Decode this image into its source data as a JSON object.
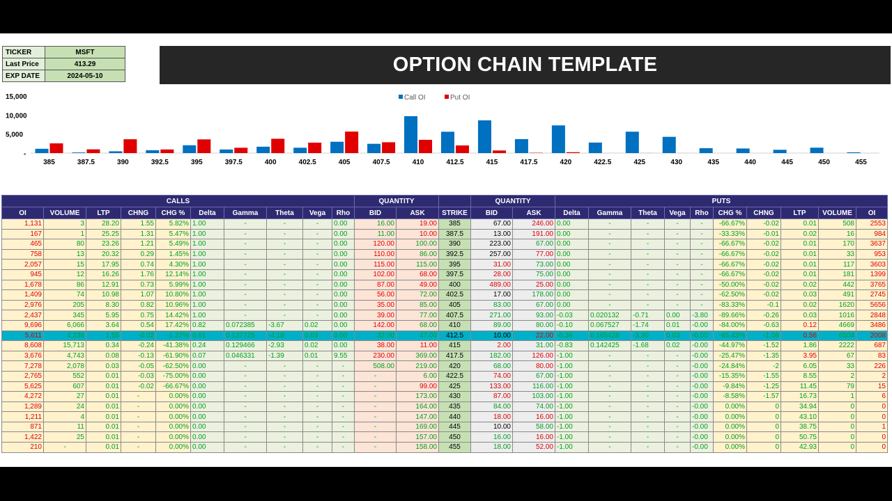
{
  "info": {
    "ticker_label": "TICKER",
    "ticker": "MSFT",
    "price_label": "Last Price",
    "price": "413.29",
    "exp_label": "EXP DATE",
    "exp": "2024-05-10"
  },
  "title": "OPTION CHAIN TEMPLATE",
  "chart_data": {
    "type": "bar",
    "title": "",
    "xlabel": "",
    "ylabel": "",
    "legend_position": "top-center",
    "ylim": [
      0,
      15000
    ],
    "y_ticks": [
      "15,000",
      "10,000",
      "5,000",
      "-"
    ],
    "y_tick_values": [
      15000,
      10000,
      5000,
      0
    ],
    "categories": [
      "385",
      "387.5",
      "390",
      "392.5",
      "395",
      "397.5",
      "400",
      "402.5",
      "405",
      "407.5",
      "410",
      "412.5",
      "415",
      "417.5",
      "420",
      "422.5",
      "425",
      "430",
      "435",
      "440",
      "445",
      "450",
      "455"
    ],
    "series": [
      {
        "name": "Call OI",
        "color": "#0070c0",
        "values": [
          1131,
          167,
          465,
          758,
          2057,
          945,
          1678,
          1409,
          2976,
          2437,
          9696,
          5611,
          8608,
          3676,
          7278,
          2765,
          5625,
          4272,
          1289,
          1211,
          871,
          1422,
          210
        ]
      },
      {
        "name": "Put OI",
        "color": "#e00000",
        "values": [
          2553,
          984,
          3637,
          953,
          3603,
          1399,
          3765,
          2745,
          5656,
          2848,
          3486,
          2008,
          687,
          83,
          226,
          2,
          15,
          6,
          0,
          0,
          1,
          0,
          0
        ]
      }
    ]
  },
  "groups": {
    "calls": "CALLS",
    "quantity_left": "QUANTITY",
    "quantity_right": "QUANTITY",
    "puts": "PUTS"
  },
  "headers": [
    "OI",
    "VOLUME",
    "LTP",
    "CHNG",
    "CHG %",
    "Delta",
    "Gamma",
    "Theta",
    "Vega",
    "Rho",
    "BID",
    "ASK",
    "STRIKE",
    "BID",
    "ASK",
    "Delta",
    "Gamma",
    "Theta",
    "Vega",
    "Rho",
    "CHG %",
    "CHNG",
    "LTP",
    "VOLUME",
    "OI"
  ],
  "rows": [
    [
      "1,131",
      "3",
      "28.20",
      "1.55",
      "5.82%",
      "1.00",
      "-",
      "-",
      "-",
      "0.00",
      "16.00",
      "19.00",
      "385",
      "67.00",
      "246.00",
      "0.00",
      "-",
      "-",
      "-",
      "-",
      "-66.67%",
      "-0.02",
      "0.01",
      "508",
      "2553"
    ],
    [
      "167",
      "1",
      "25.25",
      "1.31",
      "5.47%",
      "1.00",
      "-",
      "-",
      "-",
      "0.00",
      "11.00",
      "10.00",
      "387.5",
      "13.00",
      "191.00",
      "0.00",
      "-",
      "-",
      "-",
      "-",
      "-33.33%",
      "-0.01",
      "0.02",
      "16",
      "984"
    ],
    [
      "465",
      "80",
      "23.26",
      "1.21",
      "5.49%",
      "1.00",
      "-",
      "-",
      "-",
      "0.00",
      "120.00",
      "100.00",
      "390",
      "223.00",
      "67.00",
      "0.00",
      "-",
      "-",
      "-",
      "-",
      "-66.67%",
      "-0.02",
      "0.01",
      "170",
      "3637"
    ],
    [
      "758",
      "13",
      "20.32",
      "0.29",
      "1.45%",
      "1.00",
      "-",
      "-",
      "-",
      "0.00",
      "110.00",
      "86.00",
      "392.5",
      "257.00",
      "77.00",
      "0.00",
      "-",
      "-",
      "-",
      "-",
      "-66.67%",
      "-0.02",
      "0.01",
      "33",
      "953"
    ],
    [
      "2,057",
      "15",
      "17.95",
      "0.74",
      "4.30%",
      "1.00",
      "-",
      "-",
      "-",
      "0.00",
      "115.00",
      "115.00",
      "395",
      "31.00",
      "73.00",
      "0.00",
      "-",
      "-",
      "-",
      "-",
      "-66.67%",
      "-0.02",
      "0.01",
      "117",
      "3603"
    ],
    [
      "945",
      "12",
      "16.26",
      "1.76",
      "12.14%",
      "1.00",
      "-",
      "-",
      "-",
      "0.00",
      "102.00",
      "68.00",
      "397.5",
      "28.00",
      "75.00",
      "0.00",
      "-",
      "-",
      "-",
      "-",
      "-66.67%",
      "-0.02",
      "0.01",
      "181",
      "1399"
    ],
    [
      "1,678",
      "86",
      "12.91",
      "0.73",
      "5.99%",
      "1.00",
      "-",
      "-",
      "-",
      "0.00",
      "87.00",
      "49.00",
      "400",
      "489.00",
      "25.00",
      "0.00",
      "-",
      "-",
      "-",
      "-",
      "-50.00%",
      "-0.02",
      "0.02",
      "442",
      "3765"
    ],
    [
      "1,409",
      "74",
      "10.98",
      "1.07",
      "10.80%",
      "1.00",
      "-",
      "-",
      "-",
      "0.00",
      "56.00",
      "72.00",
      "402.5",
      "17.00",
      "178.00",
      "0.00",
      "-",
      "-",
      "-",
      "-",
      "-62.50%",
      "-0.02",
      "0.03",
      "491",
      "2745"
    ],
    [
      "2,976",
      "205",
      "8.30",
      "0.82",
      "10.96%",
      "1.00",
      "-",
      "-",
      "-",
      "0.00",
      "35.00",
      "85.00",
      "405",
      "83.00",
      "67.00",
      "0.00",
      "-",
      "-",
      "-",
      "-",
      "-83.33%",
      "-0.1",
      "0.02",
      "1620",
      "5656"
    ],
    [
      "2,437",
      "345",
      "5.95",
      "0.75",
      "14.42%",
      "1.00",
      "-",
      "-",
      "-",
      "0.00",
      "39.00",
      "77.00",
      "407.5",
      "271.00",
      "93.00",
      "-0.03",
      "0.020132",
      "-0.71",
      "0.00",
      "-3.80",
      "-89.66%",
      "-0.26",
      "0.03",
      "1016",
      "2848"
    ],
    [
      "9,696",
      "6,066",
      "3.64",
      "0.54",
      "17.42%",
      "0.82",
      "0.072385",
      "-3.67",
      "0.02",
      "0.00",
      "142.00",
      "68.00",
      "410",
      "89.00",
      "80.00",
      "-0.10",
      "0.067527",
      "-1.74",
      "0.01",
      "-0.00",
      "-84.00%",
      "-0.63",
      "0.12",
      "4669",
      "3486"
    ],
    [
      "5,611",
      "4,236",
      "1.55",
      "-0.02",
      "-1.27%",
      "0.61",
      "0.137725",
      "-4.18",
      "0.03",
      "0.00",
      "32.00",
      "47.00",
      "412.5",
      "10.00",
      "22.00",
      "-0.36",
      "0.165428",
      "-3.30",
      "0.03",
      "-0.00",
      "-65.43%",
      "-1.06",
      "0.56",
      "6504",
      "2008"
    ],
    [
      "8,608",
      "15,713",
      "0.34",
      "-0.24",
      "-41.38%",
      "0.24",
      "0.129466",
      "-2.93",
      "0.02",
      "0.00",
      "38.00",
      "11.00",
      "415",
      "2.00",
      "31.00",
      "-0.83",
      "0.142425",
      "-1.68",
      "0.02",
      "-0.00",
      "-44.97%",
      "-1.52",
      "1.86",
      "2222",
      "687"
    ],
    [
      "3,676",
      "4,743",
      "0.08",
      "-0.13",
      "-61.90%",
      "0.07",
      "0.046331",
      "-1.39",
      "0.01",
      "9.55",
      "230.00",
      "369.00",
      "417.5",
      "182.00",
      "126.00",
      "-1.00",
      "-",
      "-",
      "-",
      "-0.00",
      "-25.47%",
      "-1.35",
      "3.95",
      "67",
      "83"
    ],
    [
      "7,278",
      "2,078",
      "0.03",
      "-0.05",
      "-62.50%",
      "0.00",
      "-",
      "-",
      "-",
      "-",
      "508.00",
      "219.00",
      "420",
      "68.00",
      "80.00",
      "-1.00",
      "-",
      "-",
      "-",
      "-0.00",
      "-24.84%",
      "-2",
      "6.05",
      "33",
      "226"
    ],
    [
      "2,765",
      "552",
      "0.01",
      "-0.03",
      "-75.00%",
      "0.00",
      "-",
      "-",
      "-",
      "-",
      "-",
      "6.00",
      "422.5",
      "74.00",
      "67.00",
      "-1.00",
      "-",
      "-",
      "-",
      "-0.00",
      "-15.35%",
      "-1.55",
      "8.55",
      "2",
      "2"
    ],
    [
      "5,625",
      "607",
      "0.01",
      "-0.02",
      "-66.67%",
      "0.00",
      "-",
      "-",
      "-",
      "-",
      "-",
      "99.00",
      "425",
      "133.00",
      "116.00",
      "-1.00",
      "-",
      "-",
      "-",
      "-0.00",
      "-9.84%",
      "-1.25",
      "11.45",
      "79",
      "15"
    ],
    [
      "4,272",
      "27",
      "0.01",
      "-",
      "0.00%",
      "0.00",
      "-",
      "-",
      "-",
      "-",
      "-",
      "173.00",
      "430",
      "87.00",
      "103.00",
      "-1.00",
      "-",
      "-",
      "-",
      "-0.00",
      "-8.58%",
      "-1.57",
      "16.73",
      "1",
      "6"
    ],
    [
      "1,289",
      "24",
      "0.01",
      "-",
      "0.00%",
      "0.00",
      "-",
      "-",
      "-",
      "-",
      "-",
      "164.00",
      "435",
      "84.00",
      "74.00",
      "-1.00",
      "-",
      "-",
      "-",
      "-0.00",
      "0.00%",
      "0",
      "34.94",
      "0",
      "0"
    ],
    [
      "1,211",
      "4",
      "0.01",
      "-",
      "0.00%",
      "0.00",
      "-",
      "-",
      "-",
      "-",
      "-",
      "147.00",
      "440",
      "18.00",
      "16.00",
      "-1.00",
      "-",
      "-",
      "-",
      "-0.00",
      "0.00%",
      "0",
      "43.10",
      "0",
      "0"
    ],
    [
      "871",
      "11",
      "0.01",
      "-",
      "0.00%",
      "0.00",
      "-",
      "-",
      "-",
      "-",
      "-",
      "169.00",
      "445",
      "10.00",
      "58.00",
      "-1.00",
      "-",
      "-",
      "-",
      "-0.00",
      "0.00%",
      "0",
      "38.75",
      "0",
      "1"
    ],
    [
      "1,422",
      "25",
      "0.01",
      "-",
      "0.00%",
      "0.00",
      "-",
      "-",
      "-",
      "-",
      "-",
      "157.00",
      "450",
      "16.00",
      "16.00",
      "-1.00",
      "-",
      "-",
      "-",
      "-0.00",
      "0.00%",
      "0",
      "50.75",
      "0",
      "0"
    ],
    [
      "210",
      "-",
      "0.01",
      "-",
      "0.00%",
      "0.00",
      "-",
      "-",
      "-",
      "-",
      "-",
      "158.00",
      "455",
      "18.00",
      "52.00",
      "-1.00",
      "-",
      "-",
      "-",
      "-0.00",
      "0.00%",
      "0",
      "42.93",
      "0",
      "0"
    ]
  ],
  "highlight_row": 11,
  "cell_colors": [
    [
      "r",
      "g",
      "g",
      "g",
      "g",
      "g",
      "g",
      "g",
      "g",
      "g",
      "g",
      "r",
      "k",
      "k",
      "r",
      "g",
      "g",
      "g",
      "g",
      "g",
      "g",
      "g",
      "g",
      "g",
      "r"
    ],
    [
      "r",
      "g",
      "g",
      "g",
      "g",
      "g",
      "g",
      "g",
      "g",
      "g",
      "g",
      "r",
      "k",
      "k",
      "r",
      "g",
      "g",
      "g",
      "g",
      "g",
      "g",
      "g",
      "g",
      "g",
      "r"
    ],
    [
      "r",
      "g",
      "g",
      "g",
      "g",
      "g",
      "g",
      "g",
      "g",
      "g",
      "r",
      "g",
      "k",
      "k",
      "g",
      "g",
      "g",
      "g",
      "g",
      "g",
      "g",
      "g",
      "g",
      "g",
      "r"
    ],
    [
      "r",
      "g",
      "g",
      "g",
      "g",
      "g",
      "g",
      "g",
      "g",
      "g",
      "r",
      "g",
      "k",
      "k",
      "r",
      "g",
      "g",
      "g",
      "g",
      "g",
      "g",
      "g",
      "g",
      "g",
      "r"
    ],
    [
      "r",
      "g",
      "g",
      "g",
      "g",
      "g",
      "g",
      "g",
      "g",
      "g",
      "r",
      "g",
      "k",
      "r",
      "g",
      "g",
      "g",
      "g",
      "g",
      "g",
      "g",
      "g",
      "g",
      "g",
      "r"
    ],
    [
      "r",
      "g",
      "g",
      "g",
      "g",
      "g",
      "g",
      "g",
      "g",
      "g",
      "r",
      "r",
      "k",
      "r",
      "g",
      "g",
      "g",
      "g",
      "g",
      "g",
      "g",
      "g",
      "g",
      "g",
      "r"
    ],
    [
      "r",
      "g",
      "g",
      "g",
      "g",
      "g",
      "g",
      "g",
      "g",
      "g",
      "r",
      "r",
      "k",
      "r",
      "r",
      "g",
      "g",
      "g",
      "g",
      "g",
      "g",
      "g",
      "g",
      "g",
      "r"
    ],
    [
      "r",
      "g",
      "g",
      "g",
      "g",
      "g",
      "g",
      "g",
      "g",
      "g",
      "r",
      "g",
      "k",
      "k",
      "g",
      "g",
      "g",
      "g",
      "g",
      "g",
      "g",
      "g",
      "g",
      "g",
      "r"
    ],
    [
      "r",
      "g",
      "g",
      "g",
      "g",
      "g",
      "g",
      "g",
      "g",
      "g",
      "r",
      "g",
      "k",
      "g",
      "g",
      "g",
      "g",
      "g",
      "g",
      "g",
      "g",
      "g",
      "g",
      "g",
      "r"
    ],
    [
      "r",
      "g",
      "g",
      "g",
      "g",
      "g",
      "g",
      "g",
      "g",
      "g",
      "r",
      "g",
      "k",
      "g",
      "g",
      "g",
      "g",
      "g",
      "g",
      "g",
      "g",
      "g",
      "g",
      "g",
      "r"
    ],
    [
      "r",
      "g",
      "g",
      "g",
      "g",
      "g",
      "g",
      "g",
      "g",
      "g",
      "r",
      "g",
      "k",
      "g",
      "g",
      "g",
      "g",
      "g",
      "g",
      "g",
      "g",
      "g",
      "r",
      "g",
      "r"
    ],
    [
      "r",
      "g",
      "g",
      "g",
      "g",
      "g",
      "g",
      "g",
      "g",
      "g",
      "g",
      "g",
      "k",
      "k",
      "r",
      "g",
      "g",
      "g",
      "g",
      "g",
      "g",
      "g",
      "r",
      "g",
      "r"
    ],
    [
      "r",
      "g",
      "g",
      "g",
      "g",
      "g",
      "g",
      "g",
      "g",
      "g",
      "r",
      "r",
      "k",
      "r",
      "g",
      "g",
      "g",
      "g",
      "g",
      "g",
      "g",
      "g",
      "g",
      "g",
      "r"
    ],
    [
      "r",
      "g",
      "g",
      "g",
      "g",
      "g",
      "g",
      "g",
      "g",
      "g",
      "r",
      "g",
      "k",
      "g",
      "r",
      "g",
      "g",
      "g",
      "g",
      "g",
      "g",
      "g",
      "r",
      "g",
      "r"
    ],
    [
      "r",
      "g",
      "g",
      "g",
      "g",
      "g",
      "g",
      "g",
      "g",
      "g",
      "g",
      "g",
      "k",
      "g",
      "r",
      "g",
      "g",
      "g",
      "g",
      "g",
      "g",
      "g",
      "g",
      "g",
      "r"
    ],
    [
      "r",
      "g",
      "g",
      "g",
      "g",
      "g",
      "g",
      "g",
      "g",
      "g",
      "g",
      "g",
      "k",
      "r",
      "g",
      "g",
      "g",
      "g",
      "g",
      "g",
      "g",
      "g",
      "g",
      "g",
      "r"
    ],
    [
      "r",
      "g",
      "g",
      "g",
      "g",
      "g",
      "g",
      "g",
      "g",
      "g",
      "g",
      "r",
      "k",
      "r",
      "g",
      "g",
      "g",
      "g",
      "g",
      "g",
      "g",
      "g",
      "g",
      "g",
      "r"
    ],
    [
      "r",
      "g",
      "g",
      "g",
      "g",
      "g",
      "g",
      "g",
      "g",
      "g",
      "g",
      "g",
      "k",
      "r",
      "g",
      "g",
      "g",
      "g",
      "g",
      "g",
      "g",
      "g",
      "g",
      "g",
      "r"
    ],
    [
      "r",
      "g",
      "g",
      "g",
      "g",
      "g",
      "g",
      "g",
      "g",
      "g",
      "g",
      "g",
      "k",
      "g",
      "g",
      "g",
      "g",
      "g",
      "g",
      "g",
      "g",
      "g",
      "g",
      "g",
      "r"
    ],
    [
      "r",
      "g",
      "g",
      "g",
      "g",
      "g",
      "g",
      "g",
      "g",
      "g",
      "g",
      "g",
      "k",
      "r",
      "r",
      "g",
      "g",
      "g",
      "g",
      "g",
      "g",
      "g",
      "g",
      "g",
      "r"
    ],
    [
      "r",
      "g",
      "g",
      "g",
      "g",
      "g",
      "g",
      "g",
      "g",
      "g",
      "g",
      "g",
      "k",
      "k",
      "g",
      "g",
      "g",
      "g",
      "g",
      "g",
      "g",
      "g",
      "g",
      "g",
      "r"
    ],
    [
      "r",
      "g",
      "g",
      "g",
      "g",
      "g",
      "g",
      "g",
      "g",
      "g",
      "g",
      "g",
      "k",
      "g",
      "r",
      "g",
      "g",
      "g",
      "g",
      "g",
      "g",
      "g",
      "g",
      "g",
      "r"
    ],
    [
      "r",
      "g",
      "g",
      "g",
      "g",
      "g",
      "g",
      "g",
      "g",
      "g",
      "g",
      "g",
      "k",
      "g",
      "r",
      "g",
      "g",
      "g",
      "g",
      "g",
      "g",
      "g",
      "g",
      "g",
      "r"
    ]
  ]
}
